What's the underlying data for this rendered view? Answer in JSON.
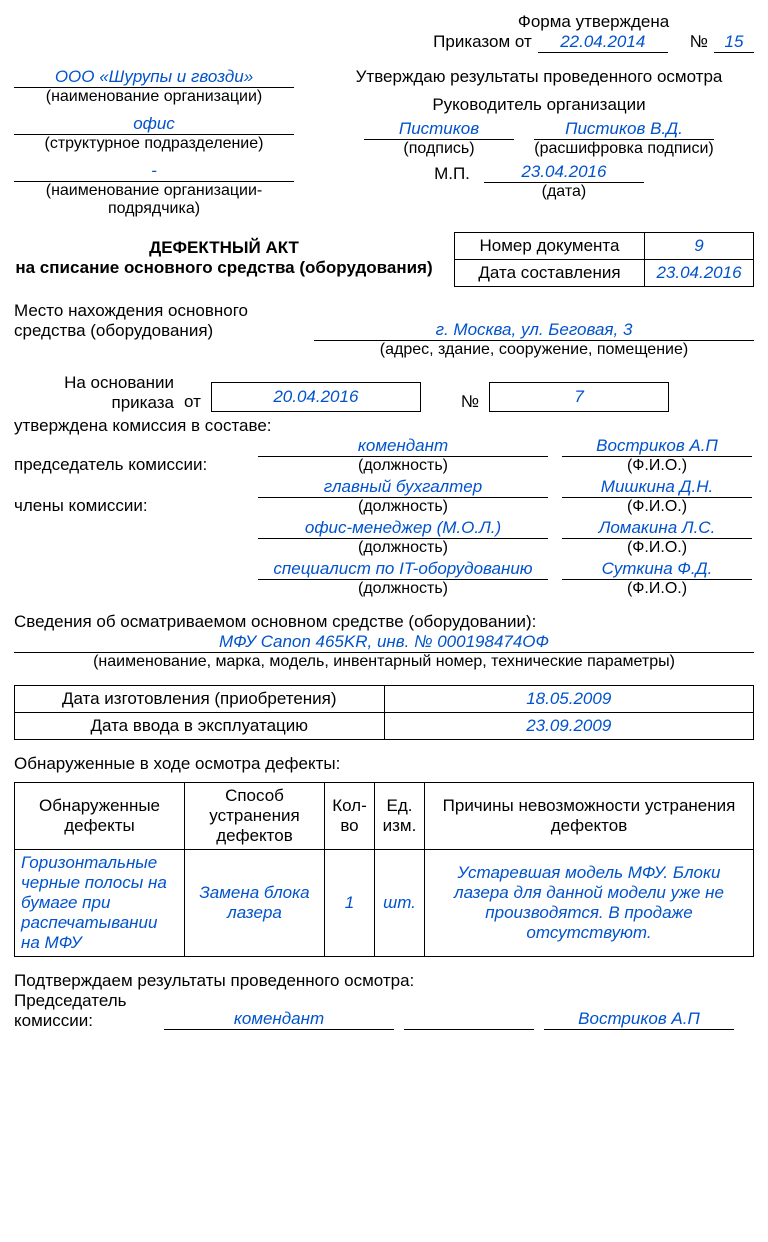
{
  "form_approved": "Форма утверждена",
  "order_from": "Приказом от",
  "order_date": "22.04.2014",
  "num_sign": "№",
  "order_num": "15",
  "org_name": "ООО «Шурупы и гвозди»",
  "org_name_hint": "(наименование организации)",
  "subdiv": "офис",
  "subdiv_hint": "(структурное подразделение)",
  "contractor": "-",
  "contractor_hint": "(наименование организации-подрядчика)",
  "approve_title": "Утверждаю результаты проведенного осмотра",
  "leader_title": "Руководитель организации",
  "sign_value": "Пистиков",
  "sign_hint": "(подпись)",
  "sign_decode": "Пистиков В.Д.",
  "sign_decode_hint": "(расшифровка подписи)",
  "mp": "М.П.",
  "approve_date": "23.04.2016",
  "date_hint": "(дата)",
  "act_title1": "ДЕФЕКТНЫЙ АКТ",
  "act_title2": "на списание основного средства (оборудования)",
  "doc_num_label": "Номер документа",
  "doc_num": "9",
  "doc_date_label": "Дата составления",
  "doc_date": "23.04.2016",
  "location_label": "Место нахождения основного средства (оборудования)",
  "location_value": "г. Москва, ул. Беговая, 3",
  "location_hint": "(адрес, здание, сооружение, помещение)",
  "based_on": "На основании приказа",
  "from_word": "от",
  "basis_date": "20.04.2016",
  "basis_num": "7",
  "commission_intro": "утверждена комиссия в составе:",
  "chair_label": "председатель комиссии:",
  "members_label": "члены комиссии:",
  "pos_hint": "(должность)",
  "fio_hint": "(Ф.И.О.)",
  "commission": [
    {
      "pos": "комендант",
      "fio": "Востриков А.П"
    },
    {
      "pos": "главный бухгалтер",
      "fio": "Мишкина Д.Н."
    },
    {
      "pos": "офис-менеджер (М.О.Л.)",
      "fio": "Ломакина Л.С."
    },
    {
      "pos": "специалист по IT-оборудованию",
      "fio": "Суткина Ф.Д."
    }
  ],
  "equip_intro": "Сведения об осматриваемом основном средстве (оборудовании):",
  "equip_value": "МФУ Canon 465KR, инв. № 000198474ОФ",
  "equip_hint": "(наименование, марка, модель, инвентарный номер, технические параметры)",
  "mfg_date_label": "Дата изготовления (приобретения)",
  "mfg_date": "18.05.2009",
  "commission_date_label": "Дата ввода в эксплуатацию",
  "commission_date": "23.09.2009",
  "defects_found_label": "Обнаруженные в ходе осмотра дефекты:",
  "defects_table": {
    "headers": [
      "Обнаруженные дефекты",
      "Способ устранения дефектов",
      "Кол-во",
      "Ед. изм.",
      "Причины невозможности устранения дефектов"
    ],
    "row": {
      "c1": "Горизонтальные черные полосы на бумаге при распечатывании на МФУ",
      "c2": "Замена блока лазера",
      "c3": "1",
      "c4": "шт.",
      "c5": "Устаревшая модель МФУ. Блоки лазера для данной модели уже не производятся. В продаже отсутствуют."
    }
  },
  "confirm_label": "Подтверждаем результаты проведенного осмотра:",
  "chair2_label": "Председатель комиссии:",
  "chair2_pos": "комендант",
  "chair2_fio": "Востриков А.П"
}
